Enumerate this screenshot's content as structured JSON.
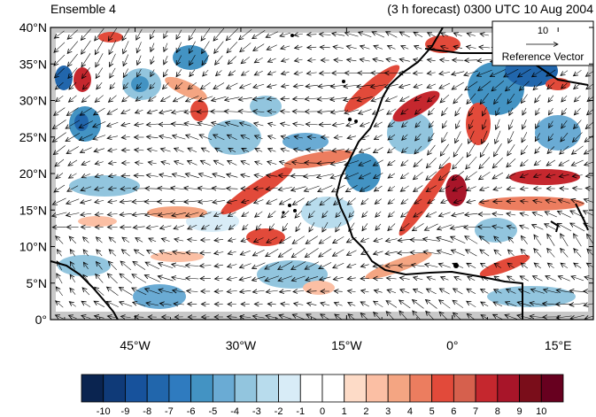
{
  "header": {
    "left_title": "Ensemble 4",
    "right_title": "(3 h forecast) 0300 UTC 10 Aug 2004"
  },
  "map": {
    "projection": "cylindrical equidistant",
    "lon_range": [
      -57,
      20
    ],
    "lat_range": [
      0,
      40
    ],
    "lat_labels": [
      "0°",
      "5°N",
      "10°N",
      "15°N",
      "20°N",
      "25°N",
      "30°N",
      "35°N",
      "40°N"
    ],
    "lat_values": [
      0,
      5,
      10,
      15,
      20,
      25,
      30,
      35,
      40
    ],
    "lon_labels": [
      "45°W",
      "30°W",
      "15°W",
      "0°",
      "15°E"
    ],
    "lon_values": [
      -45,
      -30,
      -15,
      0,
      15
    ],
    "field": "shaded scalar anomaly with overlaid wind vectors",
    "coastline_color": "#000000"
  },
  "reference_vector": {
    "magnitude_label": "10",
    "caption": "Reference Vector"
  },
  "colorbar": {
    "labels": [
      "-10",
      "-9",
      "-8",
      "-7",
      "-6",
      "-5",
      "-4",
      "-3",
      "-2",
      "-1",
      "0",
      "1",
      "2",
      "3",
      "4",
      "5",
      "6",
      "7",
      "8",
      "9",
      "10"
    ],
    "colors": [
      "#0a2450",
      "#0f3a78",
      "#17529c",
      "#2166ac",
      "#2f7bbf",
      "#4393c3",
      "#6aabd4",
      "#92c5de",
      "#b8dced",
      "#d8ecf7",
      "#ffffff",
      "#ffffff",
      "#fddbc7",
      "#fbbfa4",
      "#f4a582",
      "#ec7d5f",
      "#e24a3a",
      "#d6604d",
      "#c5272e",
      "#a81529",
      "#7a0d1a",
      "#67001f"
    ]
  }
}
